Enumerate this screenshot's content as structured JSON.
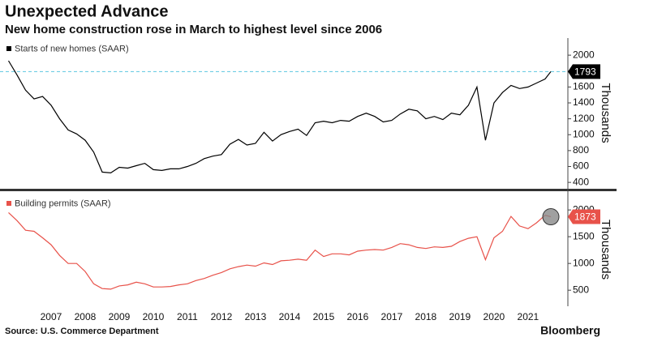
{
  "title": "Unexpected Advance",
  "subtitle": "New home construction rose in March to highest level since 2006",
  "source": "Source: U.S. Commerce Department",
  "brand": "Bloomberg",
  "chart_data": [
    {
      "type": "line",
      "y_label": "Thousands",
      "reference_line": true,
      "label_color": "#000000",
      "x": [
        2006.25,
        2006.5,
        2006.75,
        2007,
        2007.25,
        2007.5,
        2007.75,
        2008,
        2008.25,
        2008.5,
        2008.75,
        2009,
        2009.25,
        2009.5,
        2009.75,
        2010,
        2010.25,
        2010.5,
        2010.75,
        2011,
        2011.25,
        2011.5,
        2011.75,
        2012,
        2012.25,
        2012.5,
        2012.75,
        2013,
        2013.25,
        2013.5,
        2013.75,
        2014,
        2014.25,
        2014.5,
        2014.75,
        2015,
        2015.25,
        2015.5,
        2015.75,
        2016,
        2016.25,
        2016.5,
        2016.75,
        2017,
        2017.25,
        2017.5,
        2017.75,
        2018,
        2018.25,
        2018.5,
        2018.75,
        2019,
        2019.25,
        2019.5,
        2019.75,
        2020,
        2020.25,
        2020.5,
        2020.75,
        2021,
        2021.25,
        2021.5,
        2021.75,
        2022,
        2022.17
      ],
      "series": [
        {
          "name": "Starts of new homes (SAAR)",
          "color": "#000000",
          "values": [
            1930,
            1750,
            1560,
            1450,
            1480,
            1370,
            1200,
            1060,
            1010,
            930,
            780,
            530,
            520,
            590,
            580,
            610,
            640,
            560,
            550,
            570,
            570,
            600,
            640,
            700,
            730,
            750,
            880,
            940,
            870,
            890,
            1030,
            920,
            1000,
            1040,
            1070,
            990,
            1150,
            1170,
            1150,
            1180,
            1170,
            1230,
            1270,
            1230,
            1160,
            1180,
            1260,
            1320,
            1300,
            1200,
            1230,
            1190,
            1270,
            1250,
            1370,
            1600,
            930,
            1400,
            1530,
            1620,
            1580,
            1600,
            1650,
            1700,
            1793
          ]
        }
      ],
      "xlim": [
        2006,
        2022.67
      ],
      "ylim": [
        330,
        2215
      ],
      "yticks": [
        400,
        600,
        800,
        1000,
        1200,
        1400,
        1600,
        1800,
        2000
      ]
    },
    {
      "type": "line",
      "y_label": "Thousands",
      "highlight_last": true,
      "label_color": "#e8524a",
      "x": [
        2006.25,
        2006.5,
        2006.75,
        2007,
        2007.25,
        2007.5,
        2007.75,
        2008,
        2008.25,
        2008.5,
        2008.75,
        2009,
        2009.25,
        2009.5,
        2009.75,
        2010,
        2010.25,
        2010.5,
        2010.75,
        2011,
        2011.25,
        2011.5,
        2011.75,
        2012,
        2012.25,
        2012.5,
        2012.75,
        2013,
        2013.25,
        2013.5,
        2013.75,
        2014,
        2014.25,
        2014.5,
        2014.75,
        2015,
        2015.25,
        2015.5,
        2015.75,
        2016,
        2016.25,
        2016.5,
        2016.75,
        2017,
        2017.25,
        2017.5,
        2017.75,
        2018,
        2018.25,
        2018.5,
        2018.75,
        2019,
        2019.25,
        2019.5,
        2019.75,
        2020,
        2020.25,
        2020.5,
        2020.75,
        2021,
        2021.25,
        2021.5,
        2021.75,
        2022,
        2022.17
      ],
      "series": [
        {
          "name": "Building permits (SAAR)",
          "color": "#e8524a",
          "values": [
            1950,
            1800,
            1620,
            1600,
            1480,
            1350,
            1150,
            1000,
            1000,
            850,
            620,
            530,
            520,
            580,
            600,
            650,
            620,
            560,
            560,
            570,
            600,
            620,
            680,
            720,
            780,
            830,
            900,
            940,
            970,
            950,
            1010,
            980,
            1050,
            1060,
            1080,
            1060,
            1250,
            1130,
            1180,
            1180,
            1160,
            1230,
            1250,
            1260,
            1250,
            1300,
            1370,
            1350,
            1300,
            1280,
            1310,
            1300,
            1320,
            1410,
            1470,
            1500,
            1070,
            1480,
            1600,
            1880,
            1700,
            1650,
            1760,
            1900,
            1873
          ]
        }
      ],
      "xlim": [
        2006,
        2022.67
      ],
      "ylim": [
        200,
        2320
      ],
      "yticks": [
        500,
        1000,
        1500,
        2000
      ],
      "xticks": [
        {
          "value": 2007.5,
          "label": "2007"
        },
        {
          "value": 2008.5,
          "label": "2008"
        },
        {
          "value": 2009.5,
          "label": "2009"
        },
        {
          "value": 2010.5,
          "label": "2010"
        },
        {
          "value": 2011.5,
          "label": "2011"
        },
        {
          "value": 2012.5,
          "label": "2012"
        },
        {
          "value": 2013.5,
          "label": "2013"
        },
        {
          "value": 2014.5,
          "label": "2014"
        },
        {
          "value": 2015.5,
          "label": "2015"
        },
        {
          "value": 2016.5,
          "label": "2016"
        },
        {
          "value": 2017.5,
          "label": "2017"
        },
        {
          "value": 2018.5,
          "label": "2018"
        },
        {
          "value": 2019.5,
          "label": "2019"
        },
        {
          "value": 2020.5,
          "label": "2020"
        },
        {
          "value": 2021.5,
          "label": "2021"
        }
      ]
    }
  ]
}
